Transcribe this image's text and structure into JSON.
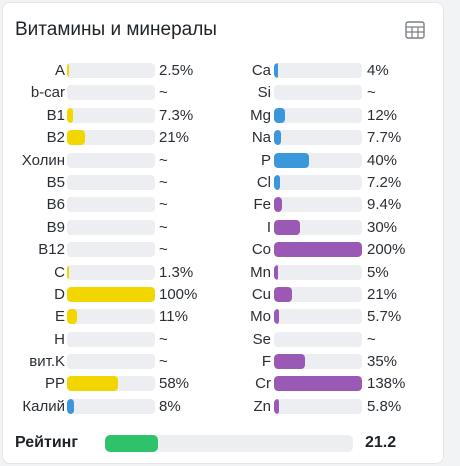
{
  "card": {
    "title": "Витамины и минералы",
    "icon": "table-icon"
  },
  "colors": {
    "vitamin": "#f2d600",
    "mineral_blue": "#3b97db",
    "mineral_purple": "#9b59b6",
    "rating": "#2ec26a",
    "track": "#edeef1"
  },
  "vitamins": [
    {
      "label": "A",
      "percent_text": "2.5%",
      "level": 2.5,
      "color": "#f2d600"
    },
    {
      "label": "b-car",
      "percent_text": "~",
      "level": 0,
      "color": "#f2d600"
    },
    {
      "label": "B1",
      "percent_text": "7.3%",
      "level": 7.3,
      "color": "#f2d600"
    },
    {
      "label": "B2",
      "percent_text": "21%",
      "level": 21,
      "color": "#f2d600"
    },
    {
      "label": "Холин",
      "percent_text": "~",
      "level": 0,
      "color": "#f2d600"
    },
    {
      "label": "B5",
      "percent_text": "~",
      "level": 0,
      "color": "#f2d600"
    },
    {
      "label": "B6",
      "percent_text": "~",
      "level": 0,
      "color": "#f2d600"
    },
    {
      "label": "B9",
      "percent_text": "~",
      "level": 0,
      "color": "#f2d600"
    },
    {
      "label": "B12",
      "percent_text": "~",
      "level": 0,
      "color": "#f2d600"
    },
    {
      "label": "C",
      "percent_text": "1.3%",
      "level": 1.3,
      "color": "#f2d600"
    },
    {
      "label": "D",
      "percent_text": "100%",
      "level": 100,
      "color": "#f2d600"
    },
    {
      "label": "E",
      "percent_text": "11%",
      "level": 11,
      "color": "#f2d600"
    },
    {
      "label": "H",
      "percent_text": "~",
      "level": 0,
      "color": "#f2d600"
    },
    {
      "label": "вит.K",
      "percent_text": "~",
      "level": 0,
      "color": "#f2d600"
    },
    {
      "label": "PP",
      "percent_text": "58%",
      "level": 58,
      "color": "#f2d600"
    },
    {
      "label": "Калий",
      "percent_text": "8%",
      "level": 8,
      "color": "#3b97db"
    }
  ],
  "minerals": [
    {
      "label": "Ca",
      "percent_text": "4%",
      "level": 4,
      "color": "#3b97db"
    },
    {
      "label": "Si",
      "percent_text": "~",
      "level": 0,
      "color": "#3b97db"
    },
    {
      "label": "Mg",
      "percent_text": "12%",
      "level": 12,
      "color": "#3b97db"
    },
    {
      "label": "Na",
      "percent_text": "7.7%",
      "level": 7.7,
      "color": "#3b97db"
    },
    {
      "label": "P",
      "percent_text": "40%",
      "level": 40,
      "color": "#3b97db"
    },
    {
      "label": "Cl",
      "percent_text": "7.2%",
      "level": 7.2,
      "color": "#3b97db"
    },
    {
      "label": "Fe",
      "percent_text": "9.4%",
      "level": 9.4,
      "color": "#9b59b6"
    },
    {
      "label": "I",
      "percent_text": "30%",
      "level": 30,
      "color": "#9b59b6"
    },
    {
      "label": "Co",
      "percent_text": "200%",
      "level": 200,
      "color": "#9b59b6"
    },
    {
      "label": "Mn",
      "percent_text": "5%",
      "level": 5,
      "color": "#9b59b6"
    },
    {
      "label": "Cu",
      "percent_text": "21%",
      "level": 21,
      "color": "#9b59b6"
    },
    {
      "label": "Mo",
      "percent_text": "5.7%",
      "level": 5.7,
      "color": "#9b59b6"
    },
    {
      "label": "Se",
      "percent_text": "~",
      "level": 0,
      "color": "#9b59b6"
    },
    {
      "label": "F",
      "percent_text": "35%",
      "level": 35,
      "color": "#9b59b6"
    },
    {
      "label": "Cr",
      "percent_text": "138%",
      "level": 138,
      "color": "#9b59b6"
    },
    {
      "label": "Zn",
      "percent_text": "5.8%",
      "level": 5.8,
      "color": "#9b59b6"
    }
  ],
  "rating": {
    "label": "Рейтинг",
    "value_text": "21.2",
    "level": 21.2
  }
}
